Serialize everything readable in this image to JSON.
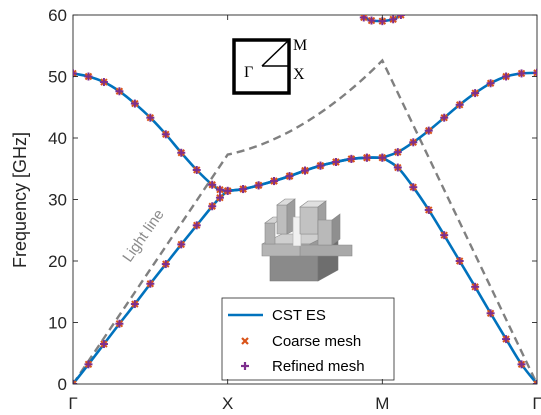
{
  "chart_data": {
    "type": "line",
    "ylabel": "Frequency [GHz]",
    "xlabel": "",
    "x_ticks": [
      "Γ",
      "X",
      "M",
      "Γ"
    ],
    "y_ticks": [
      "0",
      "10",
      "20",
      "30",
      "40",
      "50",
      "60"
    ],
    "ylim": [
      0,
      60
    ],
    "x_domain": [
      0,
      3
    ],
    "grid": false,
    "legend_position": "bottom-center",
    "legend": [
      {
        "label": "CST ES",
        "style": "line",
        "color": "#0072bd"
      },
      {
        "label": "Coarse mesh",
        "style": "x-marker",
        "color": "#d95319"
      },
      {
        "label": "Refined mesh",
        "style": "plus-marker",
        "color": "#7e2f8e"
      }
    ],
    "annotation": "Light line",
    "inset_labels": {
      "top_right": "M",
      "left": "Γ",
      "right": "X"
    },
    "series": [
      {
        "name": "CST ES",
        "kind": "band-1",
        "x": [
          0,
          0.1,
          0.2,
          0.3,
          0.4,
          0.5,
          0.6,
          0.7,
          0.8,
          0.9,
          0.95,
          1.0,
          1.1,
          1.2,
          1.3,
          1.4,
          1.5,
          1.6,
          1.7,
          1.8,
          1.9,
          2.0,
          2.1,
          2.2,
          2.3,
          2.4,
          2.5,
          2.6,
          2.7,
          2.8,
          2.9,
          3.0
        ],
        "y": [
          0,
          3.2,
          6.5,
          9.8,
          13.0,
          16.3,
          19.5,
          22.7,
          25.8,
          28.9,
          30.3,
          31.4,
          31.7,
          32.3,
          33.0,
          33.8,
          34.7,
          35.5,
          36.1,
          36.6,
          36.8,
          36.8,
          35.2,
          32.0,
          28.3,
          24.2,
          20.0,
          15.8,
          11.5,
          7.3,
          3.2,
          0
        ]
      },
      {
        "name": "CST ES",
        "kind": "band-2",
        "x": [
          0,
          0.1,
          0.2,
          0.3,
          0.4,
          0.5,
          0.6,
          0.7,
          0.8,
          0.9,
          0.95,
          1.0,
          1.1,
          1.2,
          1.3,
          1.4,
          1.5,
          1.6,
          1.7,
          1.8,
          1.9,
          2.0,
          2.1,
          2.2,
          2.3,
          2.4,
          2.5,
          2.6,
          2.7,
          2.8,
          2.9,
          3.0
        ],
        "y": [
          50.5,
          50.0,
          49.1,
          47.6,
          45.6,
          43.3,
          40.6,
          37.6,
          34.8,
          32.4,
          31.6,
          31.4,
          31.7,
          32.3,
          33.0,
          33.8,
          34.7,
          35.5,
          36.1,
          36.6,
          36.8,
          36.8,
          37.7,
          39.3,
          41.2,
          43.3,
          45.4,
          47.3,
          48.9,
          50.0,
          50.5,
          50.6
        ]
      },
      {
        "name": "CST ES",
        "kind": "band-3",
        "x": [
          1.88,
          1.93,
          2.0,
          2.07,
          2.12
        ],
        "y": [
          59.6,
          59.1,
          59.0,
          59.3,
          60.0
        ]
      },
      {
        "name": "Light line",
        "kind": "light-line",
        "x": [
          0,
          1.0,
          1.5,
          2.0,
          3.0
        ],
        "y": [
          0,
          37.3,
          42.2,
          52.6,
          0
        ]
      }
    ]
  },
  "colors": {
    "band": "#0072bd",
    "coarse": "#d95319",
    "refined": "#7e2f8e",
    "light_line": "#808080"
  }
}
